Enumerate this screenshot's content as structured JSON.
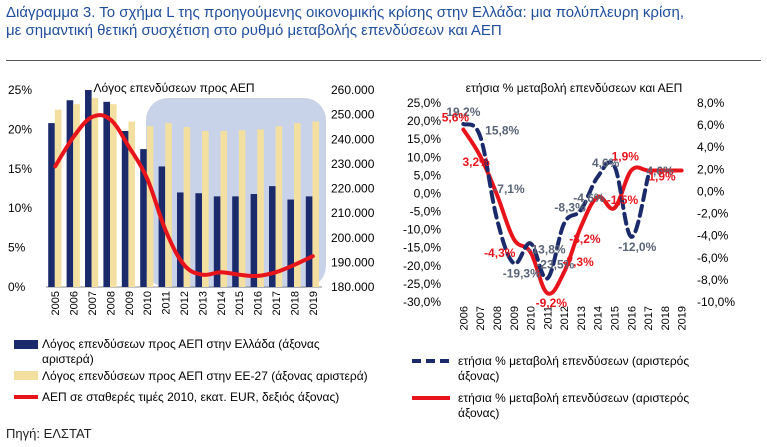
{
  "title_line1": "Διάγραμμα 3. Το σχήμα L της προηγούμενης οικονομικής κρίσης στην Ελλάδα: μια πολύπλευρη κρίση,",
  "title_line2": "με σημαντική θετική συσχέτιση στο ρυθμό μεταβολής επενδύσεων και ΑΕΠ",
  "source": "Πηγή: ΕΛΣΤΑΤ",
  "colors": {
    "navy": "#1b2a6b",
    "beige": "#f3dfa0",
    "red": "#e8141b",
    "title_blue": "#1f4e9c",
    "panel_bg": "#c8d3ea",
    "label_grey": "#5a6478"
  },
  "chart_data": [
    {
      "type": "bar",
      "title": "Λόγος επενδύσεων προς ΑΕΠ",
      "categories": [
        "2005",
        "2006",
        "2007",
        "2008",
        "2009",
        "2010",
        "2011",
        "2012",
        "2013",
        "2014",
        "2015",
        "2016",
        "2017",
        "2018",
        "2019"
      ],
      "ylim_left": [
        0,
        25
      ],
      "left_ticks": [
        "0%",
        "5%",
        "10%",
        "15%",
        "20%",
        "25%"
      ],
      "ylim_right": [
        180000,
        260000
      ],
      "right_ticks": [
        "180.000",
        "190.000",
        "200.000",
        "210.000",
        "220.000",
        "230.000",
        "240.000",
        "250.000",
        "260.000"
      ],
      "series": [
        {
          "name": "Λόγος επενδύσεων προς ΑΕΠ στην Ελλάδα (άξονας αριστερά)",
          "axis": "left",
          "kind": "bar",
          "values": [
            20.8,
            23.7,
            25.0,
            23.5,
            19.8,
            17.5,
            15.3,
            12.0,
            11.9,
            11.5,
            11.5,
            11.8,
            12.8,
            11.1,
            11.5
          ]
        },
        {
          "name": "Λόγος επενδύσεων προς ΑΕΠ στην ΕΕ-27 (άξονας αριστερά)",
          "axis": "left",
          "kind": "bar",
          "values": [
            22.5,
            23.2,
            24.0,
            23.2,
            21.0,
            20.4,
            20.8,
            20.3,
            19.8,
            19.8,
            19.9,
            20.0,
            20.4,
            20.8,
            21.0
          ]
        },
        {
          "name": "ΑΕΠ σε σταθερές τιμές 2010, εκατ. EUR, δεξιός άξονας)",
          "axis": "right",
          "kind": "line",
          "values": [
            229000,
            241000,
            249000,
            248000,
            237000,
            224000,
            203000,
            189000,
            185000,
            186000,
            185000,
            184500,
            186000,
            189000,
            192500
          ]
        }
      ]
    },
    {
      "type": "line",
      "title": "ετήσια % μεταβολή επενδύσεων και ΑΕΠ",
      "categories": [
        "2006",
        "2007",
        "2008",
        "2009",
        "2010",
        "2011",
        "2012",
        "2013",
        "2014",
        "2015",
        "2016",
        "2017",
        "2018",
        "2019"
      ],
      "ylim_left": [
        -30,
        25
      ],
      "left_ticks": [
        "-30,0%",
        "-25,0%",
        "-20,0%",
        "-15,0%",
        "-10,0%",
        "-5,0%",
        "0,0%",
        "5,0%",
        "10,0%",
        "15,0%",
        "20,0%",
        "25,0%"
      ],
      "ylim_right": [
        -10,
        8
      ],
      "right_ticks": [
        "-10,0%",
        "-8,0%",
        "-6,0%",
        "-4,0%",
        "-2,0%",
        "0,0%",
        "2,0%",
        "4,0%",
        "6,0%",
        "8,0%"
      ],
      "series": [
        {
          "name": "ετήσια % μεταβολή επενδύσεων (αριστερός άξονας)",
          "axis": "left",
          "style": "dashed",
          "values": [
            19.2,
            15.8,
            -7.1,
            -19.3,
            -13.8,
            -23.5,
            -8.3,
            -4.6,
            4.6,
            7.5,
            -12.0,
            4.6,
            null,
            null
          ],
          "labels": [
            "19,2%",
            "15,8%",
            "-7,1%",
            "-19,3%",
            "-13,8%",
            "-23,5%",
            "-8,3%",
            "-4,6%",
            "4,6%",
            "",
            "-12,0%",
            "4,6%",
            "",
            ""
          ]
        },
        {
          "name": "ετήσια % μεταβολή επενδύσεων (αριστερός άξονας)",
          "axis": "right",
          "style": "solid",
          "values": [
            5.6,
            3.2,
            -0.3,
            -4.3,
            -5.5,
            -9.2,
            -7.3,
            -3.2,
            -0.5,
            -1.5,
            1.9,
            1.9,
            1.9,
            1.9
          ],
          "labels": [
            "5,6%",
            "3,2%",
            "",
            "-4,3%",
            "",
            "-9,2%",
            "-7,3%",
            "-3,2%",
            "",
            "-1,5%",
            "1,9%",
            "1,9%",
            "",
            ""
          ]
        }
      ]
    }
  ],
  "legend_left": [
    {
      "label": "Λόγος επενδύσεων προς ΑΕΠ στην Ελλάδα (άξονας αριστερά)"
    },
    {
      "label": "Λόγος επενδύσεων προς ΑΕΠ στην ΕΕ-27 (άξονας αριστερά)"
    },
    {
      "label": "ΑΕΠ σε σταθερές τιμές 2010, εκατ. EUR, δεξιός άξονας)"
    }
  ],
  "legend_right": [
    {
      "label": "ετήσια % μεταβολή επενδύσεων (αριστερός άξονας)"
    },
    {
      "label": "ετήσια % μεταβολή επενδύσεων (αριστερός άξονας)"
    }
  ]
}
